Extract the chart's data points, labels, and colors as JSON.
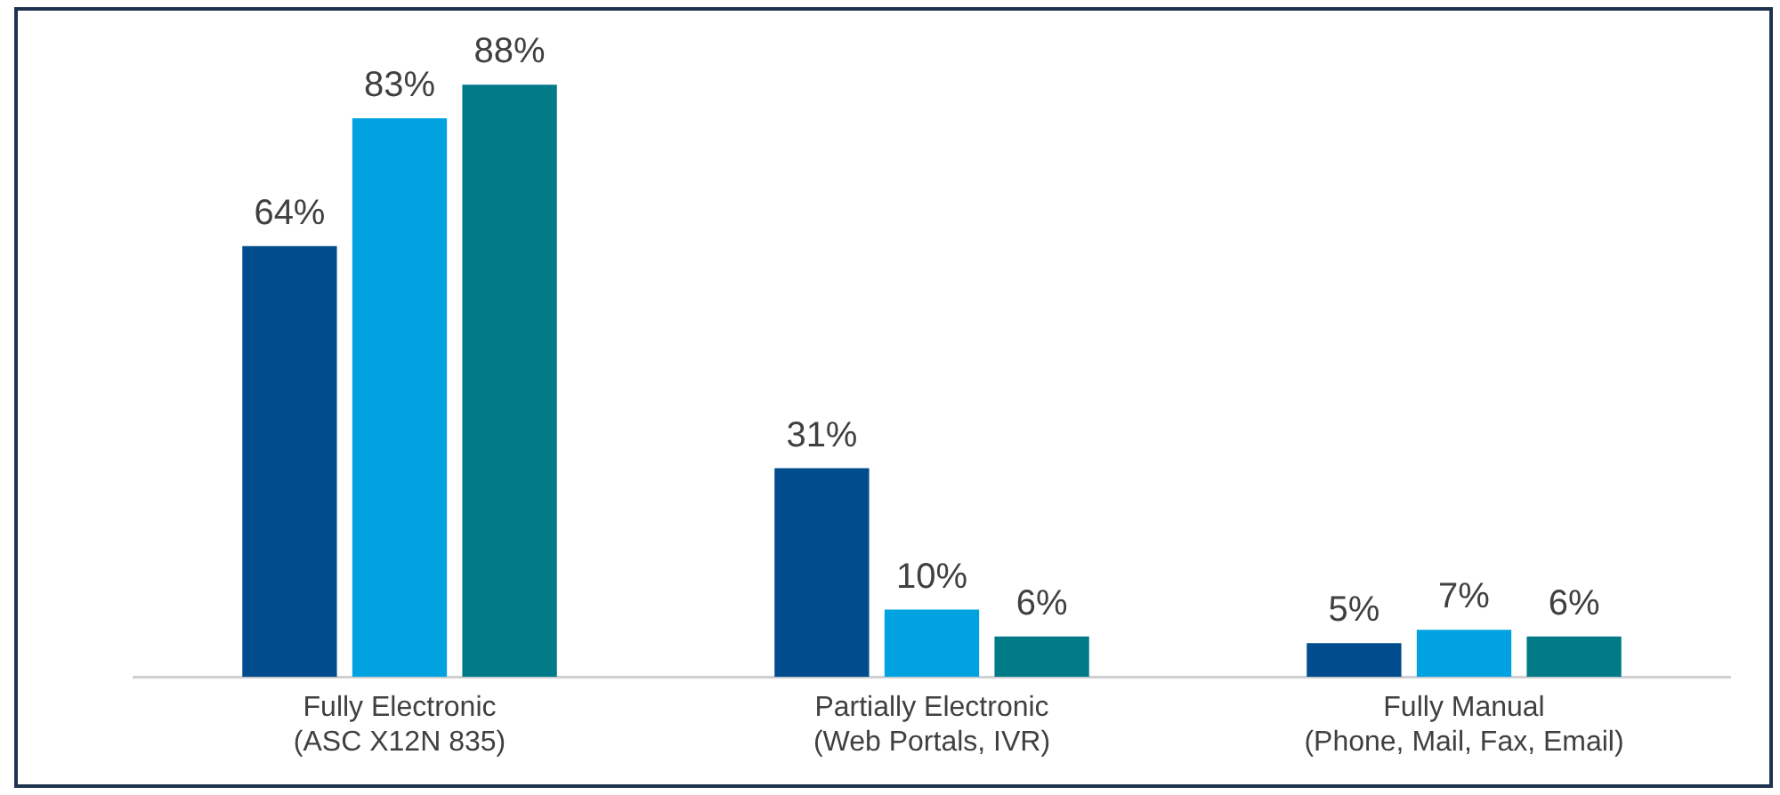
{
  "chart_data": {
    "type": "bar",
    "categories": [
      "Fully Electronic\n(ASC X12N 835)",
      "Partially Electronic\n(Web Portals, IVR)",
      "Fully Manual\n(Phone, Mail, Fax, Email)"
    ],
    "series": [
      {
        "color": "#004c8c",
        "values": [
          64,
          31,
          5
        ],
        "value_labels": [
          "64%",
          "31%",
          "5%"
        ]
      },
      {
        "color": "#00a3e0",
        "values": [
          83,
          10,
          7
        ],
        "value_labels": [
          "83%",
          "10%",
          "7%"
        ]
      },
      {
        "color": "#007a87",
        "values": [
          88,
          6,
          6
        ],
        "value_labels": [
          "88%",
          "6%",
          "6%"
        ]
      }
    ],
    "grid": false,
    "legend": false
  }
}
